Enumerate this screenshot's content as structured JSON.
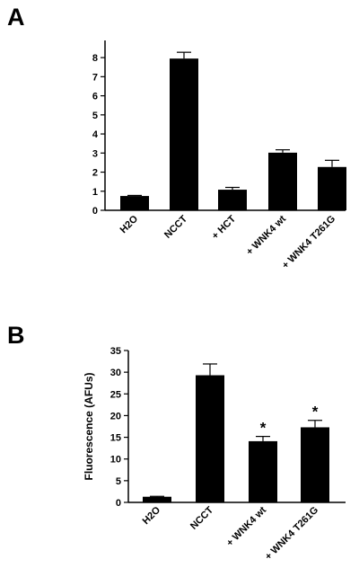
{
  "chart_data": [
    {
      "type": "bar",
      "panel_label": "A",
      "categories": [
        "H2O",
        "NCCT",
        "+ HCT",
        "+ WNK4 wt",
        "+ WNK4 T261G"
      ],
      "values": [
        0.75,
        7.95,
        1.08,
        3.02,
        2.27
      ],
      "errors": [
        0.03,
        0.33,
        0.12,
        0.15,
        0.35
      ],
      "annotations": [
        "",
        "",
        "",
        "",
        ""
      ],
      "ylim": [
        0,
        8.9
      ],
      "yticks": [
        0,
        1,
        2,
        3,
        4,
        5,
        6,
        7,
        8
      ],
      "ylabel": "",
      "xlabel": "",
      "bar_color": "#000000",
      "grid": false
    },
    {
      "type": "bar",
      "panel_label": "B",
      "categories": [
        "H2O",
        "NCCT",
        "+ WNK4 wt",
        "+ WNK4 T261G"
      ],
      "values": [
        1.3,
        29.3,
        14.1,
        17.3
      ],
      "errors": [
        0.1,
        2.6,
        1.1,
        1.6
      ],
      "annotations": [
        "",
        "",
        "*",
        "*"
      ],
      "ylim": [
        0,
        35
      ],
      "yticks": [
        0,
        5,
        10,
        15,
        20,
        25,
        30,
        35
      ],
      "ylabel": "Fluorescence (AFUs)",
      "xlabel": "",
      "bar_color": "#000000",
      "grid": false
    }
  ]
}
